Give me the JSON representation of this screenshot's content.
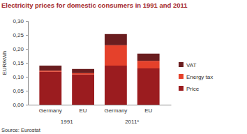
{
  "chart_data": {
    "type": "bar",
    "title": "Electricity prices for domestic consumers in 1991 and 2011",
    "y_label": "EUR/kWh",
    "source": "Source: Eurostat",
    "categories": [
      "Germany",
      "EU",
      "Germany",
      "EU"
    ],
    "groups": [
      "1991",
      "1991",
      "2011*",
      "2011*"
    ],
    "stacked": true,
    "grid": false,
    "legend": "right",
    "ylim": [
      0,
      0.3
    ],
    "yticks": [
      {
        "value": 0,
        "label": "0,00"
      },
      {
        "value": 0.05,
        "label": "0,05"
      },
      {
        "value": 0.1,
        "label": "0,10"
      },
      {
        "value": 0.15,
        "label": "0,15"
      },
      {
        "value": 0.2,
        "label": "0,20"
      },
      {
        "value": 0.25,
        "label": "0,25"
      },
      {
        "value": 0.3,
        "label": "0,30"
      }
    ],
    "series": [
      {
        "name": "Price",
        "color": "#9b1c1f",
        "values": [
          0.118,
          0.108,
          0.14,
          0.13
        ]
      },
      {
        "name": "Energy tax",
        "color": "#e5412b",
        "values": [
          0.004,
          0.005,
          0.073,
          0.027
        ]
      },
      {
        "name": "VAT",
        "color": "#6a1d1f",
        "values": [
          0.018,
          0.015,
          0.04,
          0.026
        ]
      }
    ]
  }
}
